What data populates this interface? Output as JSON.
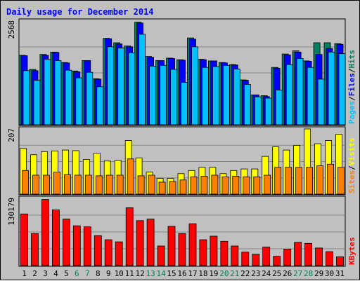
{
  "colors": {
    "background": "#c0c0c0",
    "panel_border": "#000000",
    "grid": "#888888",
    "title": "#0000ff",
    "hits": "#00805c",
    "files": "#0000ff",
    "pages": "#00c0ff",
    "visits": "#ffff00",
    "sites": "#ff8000",
    "kbytes": "#ff0000",
    "weekday_label": "#000000",
    "weekend_label": "#00805c",
    "separator": "#000000"
  },
  "chart_data": {
    "type": "bar",
    "title": "Daily usage for December 2014",
    "categories": [
      "1",
      "2",
      "3",
      "4",
      "5",
      "6",
      "7",
      "8",
      "9",
      "10",
      "11",
      "12",
      "13",
      "14",
      "15",
      "16",
      "17",
      "18",
      "19",
      "20",
      "21",
      "22",
      "23",
      "24",
      "25",
      "26",
      "27",
      "28",
      "29",
      "30",
      "31"
    ],
    "weekend_days": [
      "6",
      "7",
      "13",
      "14",
      "20",
      "21",
      "27",
      "28"
    ],
    "grid": true,
    "panels": [
      {
        "name": "usage-panel",
        "ymax_label": "2568",
        "ylim": [
          0,
          2568
        ],
        "legend": [
          "Pages",
          "/",
          "Files",
          "/",
          "Hits"
        ],
        "legend_colors": [
          "#00c0ff",
          "#000000",
          "#0000ff",
          "#000000",
          "#00805c"
        ],
        "series": [
          {
            "name": "Hits",
            "color_key": "hits",
            "values": [
              1720,
              1370,
              1740,
              1800,
              1540,
              1330,
              1590,
              1140,
              2140,
              2030,
              1950,
              2540,
              1690,
              1590,
              1650,
              1610,
              2150,
              1620,
              1580,
              1540,
              1490,
              1110,
              740,
              720,
              1420,
              1750,
              1830,
              1580,
              2030,
              2030,
              2010
            ]
          },
          {
            "name": "Files",
            "color_key": "files",
            "values": [
              1710,
              1340,
              1720,
              1790,
              1530,
              1310,
              1590,
              1130,
              2130,
              2000,
              1930,
              2520,
              1670,
              1590,
              1640,
              1600,
              2120,
              1610,
              1580,
              1530,
              1480,
              1100,
              740,
              700,
              1400,
              1730,
              1800,
              1570,
              1740,
              1890,
              1990
            ]
          },
          {
            "name": "Pages",
            "color_key": "pages",
            "values": [
              1340,
              1100,
              1620,
              1590,
              1350,
              1160,
              1300,
              940,
              1930,
              1900,
              1780,
              2240,
              1450,
              1470,
              1370,
              1050,
              1930,
              1420,
              1440,
              1470,
              1380,
              1000,
              690,
              660,
              860,
              1490,
              1640,
              1420,
              1130,
              1800,
              1760
            ]
          }
        ]
      },
      {
        "name": "visits-panel",
        "ymax_label": "207",
        "ylim": [
          0,
          207
        ],
        "legend": [
          "Sites",
          "/",
          "Visits"
        ],
        "legend_colors": [
          "#ff8000",
          "#000000",
          "#ffff00"
        ],
        "series": [
          {
            "name": "Visits",
            "color_key": "visits",
            "values": [
              145,
              125,
              135,
              137,
              140,
              138,
              110,
              130,
              105,
              107,
              170,
              115,
              70,
              50,
              50,
              65,
              75,
              85,
              85,
              65,
              75,
              80,
              80,
              120,
              150,
              140,
              155,
              207,
              160,
              170,
              190
            ]
          },
          {
            "name": "Sites",
            "color_key": "sites",
            "values": [
              75,
              60,
              60,
              70,
              62,
              60,
              60,
              58,
              60,
              60,
              112,
              58,
              60,
              38,
              40,
              45,
              55,
              57,
              60,
              55,
              57,
              55,
              55,
              60,
              85,
              85,
              85,
              85,
              90,
              95,
              85
            ]
          }
        ]
      },
      {
        "name": "kbytes-panel",
        "ymax_label": "130179",
        "ylim": [
          0,
          130179
        ],
        "legend": [
          "KBytes"
        ],
        "legend_colors": [
          "#ff0000"
        ],
        "series": [
          {
            "name": "KBytes",
            "color_key": "kbytes",
            "values": [
              100000,
              62000,
              128000,
              108000,
              90000,
              77000,
              75000,
              58000,
              50000,
              46000,
              112000,
              87000,
              90000,
              38000,
              76000,
              62000,
              81000,
              50000,
              57000,
              47000,
              38000,
              26000,
              22000,
              36000,
              18000,
              32000,
              45000,
              43000,
              34000,
              27000,
              17000
            ]
          }
        ]
      }
    ]
  }
}
